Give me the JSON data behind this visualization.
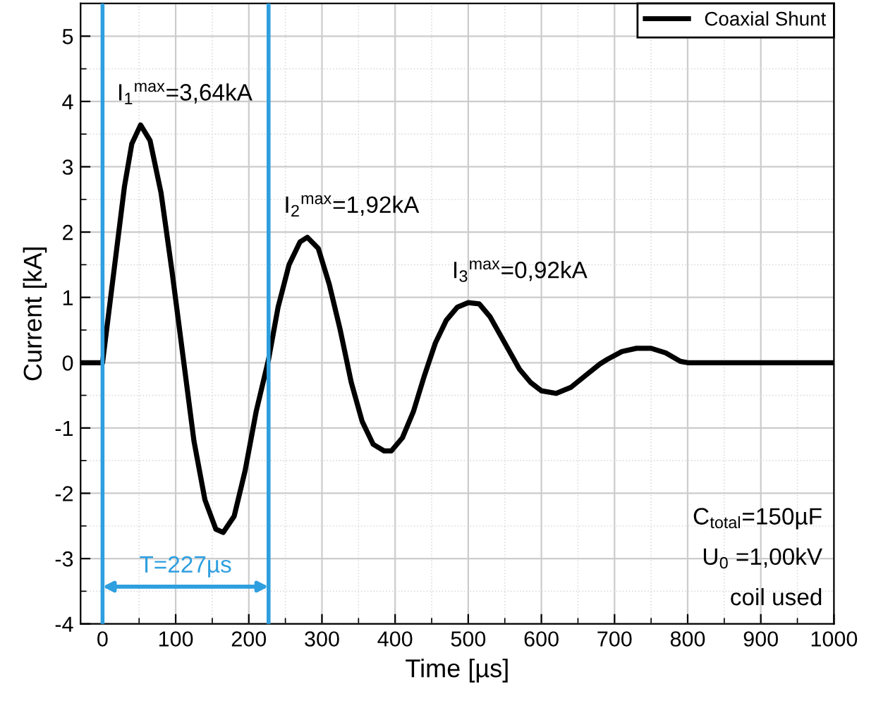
{
  "chart_data": {
    "type": "line",
    "xlabel": "Time [µs]",
    "ylabel": "Current [kA]",
    "xlim": [
      -30,
      1000
    ],
    "ylim": [
      -4,
      5.5
    ],
    "xticks": [
      0,
      100,
      200,
      300,
      400,
      500,
      600,
      700,
      800,
      900,
      1000
    ],
    "yticks": [
      -4,
      -3,
      -2,
      -1,
      0,
      1,
      2,
      3,
      4,
      5
    ],
    "grid": true,
    "legend": "top right",
    "marker": "none",
    "line_style": "solid",
    "series": [
      {
        "name": "Coaxial Shunt",
        "color": "#000000",
        "x": [
          -30,
          0,
          10,
          20,
          30,
          40,
          52,
          65,
          80,
          95,
          110,
          125,
          140,
          155,
          165,
          180,
          195,
          210,
          227,
          240,
          255,
          270,
          280,
          295,
          310,
          325,
          340,
          355,
          370,
          385,
          395,
          410,
          425,
          440,
          455,
          470,
          485,
          500,
          515,
          530,
          545,
          560,
          570,
          585,
          600,
          620,
          640,
          660,
          680,
          690,
          710,
          730,
          750,
          770,
          790,
          800,
          1000
        ],
        "values": [
          0,
          0,
          0.9,
          1.8,
          2.7,
          3.35,
          3.64,
          3.4,
          2.6,
          1.4,
          0.1,
          -1.2,
          -2.1,
          -2.55,
          -2.6,
          -2.35,
          -1.65,
          -0.75,
          0.05,
          0.85,
          1.5,
          1.85,
          1.92,
          1.75,
          1.2,
          0.5,
          -0.3,
          -0.9,
          -1.25,
          -1.35,
          -1.35,
          -1.15,
          -0.75,
          -0.2,
          0.3,
          0.65,
          0.85,
          0.92,
          0.9,
          0.7,
          0.4,
          0.1,
          -0.1,
          -0.3,
          -0.43,
          -0.47,
          -0.38,
          -0.2,
          -0.02,
          0.05,
          0.17,
          0.22,
          0.22,
          0.15,
          0.02,
          0,
          0
        ]
      }
    ],
    "ref_lines": [
      {
        "axis": "x",
        "value": 0,
        "color": "#2e9fdf"
      },
      {
        "axis": "x",
        "value": 227,
        "color": "#2e9fdf"
      }
    ],
    "annotations": [
      {
        "text": "I$_{1}$$^{max}$=3,64kA",
        "x": 52,
        "y": 3.64
      },
      {
        "text": "I$_{2}$$^{max}$=1,92kA",
        "x": 280,
        "y": 1.92
      },
      {
        "text": "I$_{3}$$^{max}$=0,92kA",
        "x": 510,
        "y": 0.92
      },
      "T=227µs",
      "C$_{total}$=150µF",
      "U$_{0}$ =1,00kV",
      "coil used"
    ]
  }
}
